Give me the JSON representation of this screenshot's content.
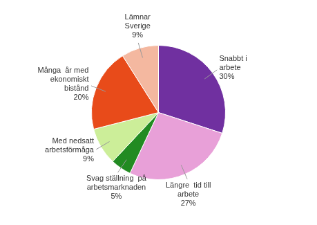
{
  "chart_data": {
    "type": "pie",
    "categories": [
      "Snabbt i\narbete\n30%",
      "Längre  tid till\narbete\n27%",
      "Svag ställning  på\narbetsmarknaden\n5%",
      "Med nedsatt\narbetsförmåga\n9%",
      "Många  år med\nekonomiskt\nbistånd\n20%",
      "Lämnar\nSverige\n9%"
    ],
    "values": [
      30,
      27,
      5,
      9,
      20,
      9
    ],
    "colors": [
      "#7030A0",
      "#E8A0D8",
      "#228B22",
      "#CCEE99",
      "#E84B1A",
      "#F4B8A0"
    ]
  }
}
